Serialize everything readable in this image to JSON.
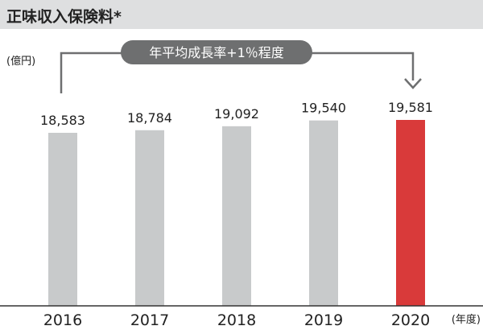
{
  "chart_data": {
    "type": "bar",
    "title": "正味収入保険料*",
    "ylabel": "(億円)",
    "xlabel": "(年度)",
    "categories": [
      "2016",
      "2017",
      "2018",
      "2019",
      "2020"
    ],
    "values": [
      18583,
      18784,
      19092,
      19540,
      19581
    ],
    "value_labels": [
      "18,583",
      "18,784",
      "19,092",
      "19,540",
      "19,581"
    ],
    "highlight_index": 4,
    "ylim": [
      0,
      20000
    ],
    "grid": false,
    "legend": "none",
    "annotation": "年平均成長率+1％程度",
    "colors": {
      "bar": "#c8cacb",
      "highlight": "#d93a3a",
      "title_band": "#dedfe0",
      "annotation": "#6e6f70"
    }
  }
}
